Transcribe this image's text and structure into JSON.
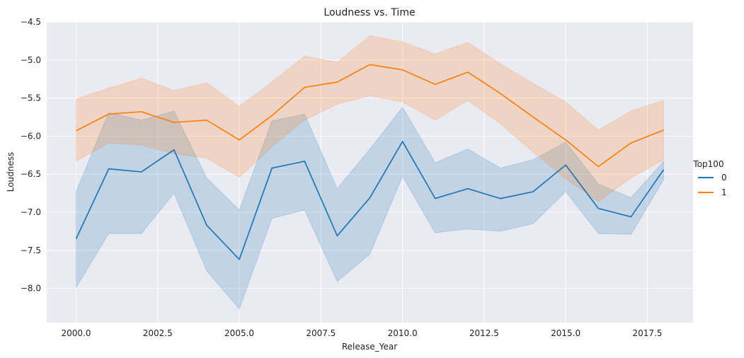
{
  "chart_data": {
    "type": "line",
    "title": "Loudness vs. Time",
    "xlabel": "Release_Year",
    "ylabel": "Loudness",
    "xlim": [
      1999.1,
      2018.9
    ],
    "ylim": [
      -8.45,
      -4.5
    ],
    "xticks": [
      2000.0,
      2002.5,
      2005.0,
      2007.5,
      2010.0,
      2012.5,
      2015.0,
      2017.5
    ],
    "xtick_labels": [
      "2000.0",
      "2002.5",
      "2005.0",
      "2007.5",
      "2010.0",
      "2012.5",
      "2015.0",
      "2017.5"
    ],
    "yticks": [
      -4.5,
      -5.0,
      -5.5,
      -6.0,
      -6.5,
      -7.0,
      -7.5,
      -8.0
    ],
    "ytick_labels": [
      "−4.5",
      "−5.0",
      "−5.5",
      "−6.0",
      "−6.5",
      "−7.0",
      "−7.5",
      "−8.0"
    ],
    "grid": true,
    "legend": {
      "title": "Top100",
      "placement": "right"
    },
    "x": [
      2000,
      2001,
      2002,
      2003,
      2004,
      2005,
      2006,
      2007,
      2008,
      2009,
      2010,
      2011,
      2012,
      2013,
      2014,
      2015,
      2016,
      2017,
      2018
    ],
    "series": [
      {
        "name": "0",
        "color": "#1f77b4",
        "values": [
          -7.35,
          -6.43,
          -6.47,
          -6.18,
          -7.17,
          -7.62,
          -6.42,
          -6.33,
          -7.31,
          -6.81,
          -6.07,
          -6.82,
          -6.69,
          -6.82,
          -6.73,
          -6.38,
          -6.95,
          -7.06,
          -6.44
        ],
        "lower": [
          -7.99,
          -7.28,
          -7.28,
          -6.75,
          -7.77,
          -8.27,
          -7.08,
          -6.97,
          -7.91,
          -7.55,
          -6.53,
          -7.27,
          -7.22,
          -7.25,
          -7.15,
          -6.73,
          -7.28,
          -7.29,
          -6.57
        ],
        "upper": [
          -6.73,
          -5.69,
          -5.79,
          -5.67,
          -6.55,
          -6.97,
          -5.8,
          -5.71,
          -6.69,
          -6.17,
          -5.62,
          -6.35,
          -6.17,
          -6.42,
          -6.31,
          -6.08,
          -6.63,
          -6.81,
          -6.33
        ]
      },
      {
        "name": "1",
        "color": "#ff7f0e",
        "values": [
          -5.93,
          -5.71,
          -5.68,
          -5.82,
          -5.79,
          -6.05,
          -5.73,
          -5.36,
          -5.29,
          -5.06,
          -5.13,
          -5.32,
          -5.16,
          -5.44,
          -5.75,
          -6.05,
          -6.4,
          -6.09,
          -5.92
        ],
        "lower": [
          -6.33,
          -6.09,
          -6.12,
          -6.23,
          -6.29,
          -6.54,
          -6.14,
          -5.79,
          -5.58,
          -5.47,
          -5.55,
          -5.79,
          -5.53,
          -5.84,
          -6.21,
          -6.56,
          -6.86,
          -6.55,
          -6.31
        ],
        "upper": [
          -5.51,
          -5.37,
          -5.24,
          -5.4,
          -5.3,
          -5.61,
          -5.29,
          -4.95,
          -5.03,
          -4.68,
          -4.76,
          -4.92,
          -4.77,
          -5.05,
          -5.31,
          -5.55,
          -5.92,
          -5.67,
          -5.53
        ]
      }
    ]
  }
}
